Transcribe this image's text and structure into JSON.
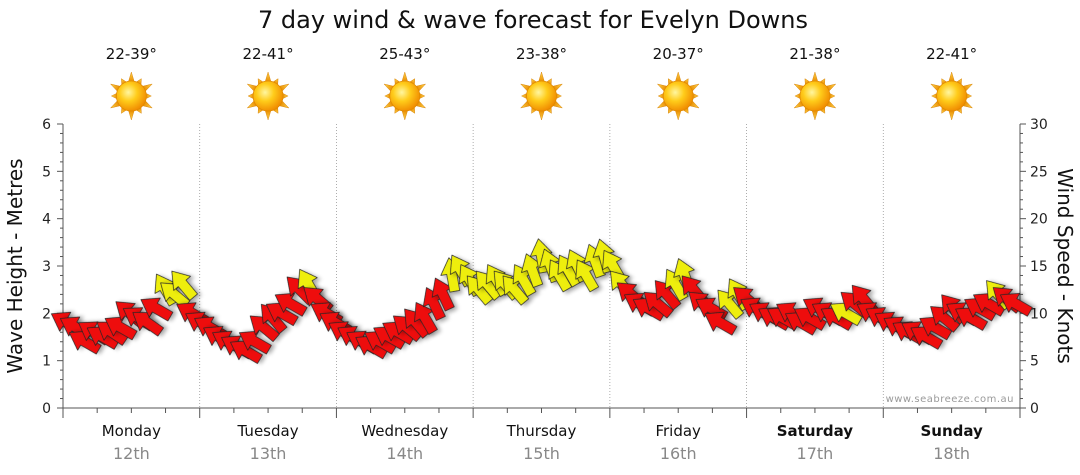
{
  "chart_data": {
    "type": "scatter",
    "title": "7 day wind & wave forecast for Evelyn Downs",
    "ylabel_left": "Wave Height - Metres",
    "ylabel_right": "Wind Speed - Knots",
    "ylim_left": [
      0,
      6
    ],
    "ylim_right": [
      0,
      30
    ],
    "yticks_left": [
      "0",
      "1",
      "2",
      "3",
      "4",
      "5",
      "6"
    ],
    "yticks_right": [
      "0",
      "5",
      "10",
      "15",
      "20",
      "25",
      "30"
    ],
    "watermark": "www.seabreeze.com.au",
    "days": [
      {
        "name": "Monday",
        "date": "12th",
        "temp": "22-39°",
        "bold": false
      },
      {
        "name": "Tuesday",
        "date": "13th",
        "temp": "22-41°",
        "bold": false
      },
      {
        "name": "Wednesday",
        "date": "14th",
        "temp": "25-43°",
        "bold": false
      },
      {
        "name": "Thursday",
        "date": "15th",
        "temp": "23-38°",
        "bold": false
      },
      {
        "name": "Friday",
        "date": "16th",
        "temp": "20-37°",
        "bold": false
      },
      {
        "name": "Saturday",
        "date": "17th",
        "temp": "21-38°",
        "bold": true
      },
      {
        "name": "Sunday",
        "date": "18th",
        "temp": "22-41°",
        "bold": true
      }
    ],
    "colors": {
      "strong": "#ee1111",
      "light": "#eeee11",
      "grid": "#999999"
    },
    "series": [
      {
        "name": "Wind Speed (knots) per 2-hour step, Mon 12th to Sun 18th",
        "values": [
          9,
          8.5,
          7,
          8,
          7.5,
          8,
          8.5,
          10,
          9.5,
          9,
          10.5,
          12.5,
          12,
          13,
          10,
          9,
          8.5,
          7.5,
          7,
          6.5,
          6,
          7,
          8.5,
          9.5,
          10,
          11,
          12.5,
          13,
          11.5,
          10,
          9,
          8,
          7.5,
          7,
          6.5,
          7,
          7.5,
          8,
          8.5,
          9,
          9.5,
          11,
          12,
          14,
          14.5,
          13.5,
          12.5,
          13,
          13.5,
          13,
          12.5,
          13.5,
          14.5,
          16,
          15,
          14,
          14.5,
          15,
          14,
          15.5,
          16,
          15,
          13,
          12,
          11,
          10.5,
          11,
          12,
          13,
          14,
          12.5,
          11,
          10.5,
          9,
          11,
          12,
          11.5,
          10.5,
          10,
          9.5,
          9.5,
          10,
          9,
          9.5,
          10.5,
          10,
          9.5,
          10,
          11,
          11.5,
          10,
          9.5,
          9,
          8.5,
          8,
          8,
          7.5,
          8.5,
          9.5,
          10.5,
          10,
          9.5,
          10.5,
          11,
          12,
          11.5,
          11
        ]
      },
      {
        "name": "Wind direction (degrees arrow points to)",
        "values": [
          300,
          300,
          300,
          302,
          300,
          304,
          300,
          310,
          302,
          305,
          300,
          330,
          310,
          320,
          300,
          300,
          300,
          300,
          300,
          300,
          300,
          300,
          310,
          320,
          300,
          300,
          315,
          330,
          310,
          300,
          300,
          300,
          300,
          300,
          300,
          300,
          300,
          300,
          310,
          320,
          330,
          335,
          335,
          350,
          330,
          330,
          320,
          320,
          330,
          320,
          320,
          330,
          340,
          350,
          340,
          330,
          330,
          335,
          330,
          340,
          345,
          330,
          320,
          310,
          300,
          300,
          310,
          320,
          330,
          340,
          320,
          310,
          300,
          300,
          320,
          330,
          310,
          300,
          300,
          300,
          300,
          300,
          300,
          300,
          300,
          300,
          300,
          300,
          310,
          320,
          300,
          300,
          300,
          300,
          300,
          300,
          300,
          300,
          310,
          320,
          300,
          300,
          300,
          300,
          320,
          310,
          300
        ]
      },
      {
        "name": "Wind strength class",
        "values": [
          "strong",
          "strong",
          "strong",
          "strong",
          "strong",
          "strong",
          "strong",
          "strong",
          "strong",
          "strong",
          "strong",
          "light",
          "light",
          "light",
          "strong",
          "strong",
          "strong",
          "strong",
          "strong",
          "strong",
          "strong",
          "strong",
          "strong",
          "strong",
          "strong",
          "strong",
          "strong",
          "light",
          "strong",
          "strong",
          "strong",
          "strong",
          "strong",
          "strong",
          "strong",
          "strong",
          "strong",
          "strong",
          "strong",
          "strong",
          "strong",
          "strong",
          "strong",
          "light",
          "light",
          "light",
          "light",
          "light",
          "light",
          "light",
          "light",
          "light",
          "light",
          "light",
          "light",
          "light",
          "light",
          "light",
          "light",
          "light",
          "light",
          "light",
          "light",
          "strong",
          "strong",
          "strong",
          "strong",
          "strong",
          "light",
          "light",
          "strong",
          "strong",
          "strong",
          "strong",
          "light",
          "light",
          "strong",
          "strong",
          "strong",
          "strong",
          "strong",
          "strong",
          "strong",
          "strong",
          "strong",
          "strong",
          "strong",
          "light",
          "strong",
          "strong",
          "strong",
          "strong",
          "strong",
          "strong",
          "strong",
          "strong",
          "strong",
          "strong",
          "strong",
          "strong",
          "strong",
          "strong",
          "strong",
          "strong",
          "light",
          "strong",
          "strong",
          "strong"
        ]
      }
    ]
  }
}
